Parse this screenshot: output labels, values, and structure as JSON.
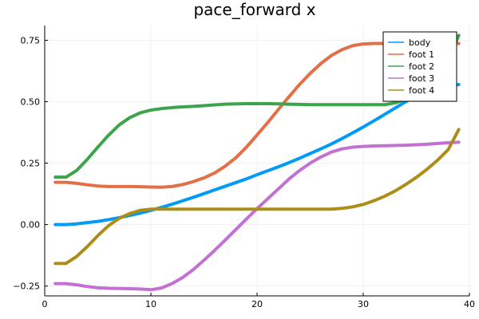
{
  "chart_data": {
    "type": "line",
    "title": "pace_forward x",
    "xlabel": "",
    "ylabel": "",
    "xlim": [
      0,
      40
    ],
    "ylim": [
      -0.29,
      0.81
    ],
    "xticks": [
      0,
      10,
      20,
      30,
      40
    ],
    "xtick_labels": [
      "0",
      "10",
      "20",
      "30",
      "40"
    ],
    "yticks": [
      -0.25,
      0,
      0.25,
      0.5,
      0.75
    ],
    "ytick_labels": [
      "−0.25",
      "0.00",
      "0.25",
      "0.50",
      "0.75"
    ],
    "grid": true,
    "legend_position": "top-right",
    "series": [
      {
        "name": "body",
        "color": "#009af9",
        "x": [
          1,
          2,
          3,
          4,
          5,
          6,
          7,
          8,
          9,
          10,
          11,
          12,
          13,
          14,
          15,
          16,
          17,
          18,
          19,
          20,
          21,
          22,
          23,
          24,
          25,
          26,
          27,
          28,
          29,
          30,
          31,
          32,
          33,
          34,
          35,
          36,
          37,
          38,
          39
        ],
        "values": [
          0.0,
          0.0,
          0.003,
          0.008,
          0.013,
          0.02,
          0.028,
          0.037,
          0.047,
          0.058,
          0.07,
          0.083,
          0.097,
          0.111,
          0.126,
          0.141,
          0.156,
          0.171,
          0.186,
          0.203,
          0.219,
          0.235,
          0.252,
          0.27,
          0.289,
          0.308,
          0.328,
          0.35,
          0.373,
          0.397,
          0.422,
          0.448,
          0.474,
          0.5,
          0.522,
          0.541,
          0.556,
          0.565,
          0.57
        ]
      },
      {
        "name": "foot 1",
        "color": "#e26f46",
        "x": [
          1,
          2,
          3,
          4,
          5,
          6,
          7,
          8,
          9,
          10,
          11,
          12,
          13,
          14,
          15,
          16,
          17,
          18,
          19,
          20,
          21,
          22,
          23,
          24,
          25,
          26,
          27,
          28,
          29,
          30,
          31,
          32,
          33,
          34,
          35,
          36,
          37,
          38,
          39
        ],
        "values": [
          0.172,
          0.172,
          0.168,
          0.162,
          0.157,
          0.155,
          0.155,
          0.155,
          0.154,
          0.153,
          0.152,
          0.155,
          0.163,
          0.175,
          0.19,
          0.21,
          0.238,
          0.272,
          0.315,
          0.365,
          0.415,
          0.468,
          0.52,
          0.57,
          0.615,
          0.655,
          0.688,
          0.712,
          0.728,
          0.735,
          0.737,
          0.737,
          0.737,
          0.737,
          0.737,
          0.737,
          0.737,
          0.737,
          0.737
        ]
      },
      {
        "name": "foot 2",
        "color": "#3da44d",
        "x": [
          1,
          2,
          3,
          4,
          5,
          6,
          7,
          8,
          9,
          10,
          11,
          12,
          13,
          14,
          15,
          16,
          17,
          18,
          19,
          20,
          21,
          22,
          23,
          24,
          25,
          26,
          27,
          28,
          29,
          30,
          31,
          32,
          33,
          34,
          35,
          36,
          37,
          38,
          39
        ],
        "values": [
          0.193,
          0.193,
          0.22,
          0.265,
          0.315,
          0.363,
          0.405,
          0.435,
          0.455,
          0.466,
          0.472,
          0.476,
          0.479,
          0.481,
          0.484,
          0.487,
          0.49,
          0.491,
          0.492,
          0.492,
          0.492,
          0.491,
          0.49,
          0.489,
          0.488,
          0.488,
          0.488,
          0.488,
          0.488,
          0.488,
          0.488,
          0.488,
          0.495,
          0.51,
          0.53,
          0.56,
          0.6,
          0.67,
          0.77
        ]
      },
      {
        "name": "foot 3",
        "color": "#c271d2",
        "x": [
          1,
          2,
          3,
          4,
          5,
          6,
          7,
          8,
          9,
          10,
          11,
          12,
          13,
          14,
          15,
          16,
          17,
          18,
          19,
          20,
          21,
          22,
          23,
          24,
          25,
          26,
          27,
          28,
          29,
          30,
          31,
          32,
          33,
          34,
          35,
          36,
          37,
          38,
          39
        ],
        "values": [
          -0.24,
          -0.24,
          -0.245,
          -0.252,
          -0.257,
          -0.259,
          -0.26,
          -0.261,
          -0.262,
          -0.265,
          -0.258,
          -0.24,
          -0.215,
          -0.183,
          -0.145,
          -0.105,
          -0.063,
          -0.02,
          0.023,
          0.065,
          0.105,
          0.145,
          0.185,
          0.22,
          0.25,
          0.275,
          0.295,
          0.308,
          0.315,
          0.318,
          0.32,
          0.321,
          0.322,
          0.323,
          0.325,
          0.327,
          0.33,
          0.333,
          0.335
        ]
      },
      {
        "name": "foot 4",
        "color": "#ac8d18",
        "x": [
          1,
          2,
          3,
          4,
          5,
          6,
          7,
          8,
          9,
          10,
          11,
          12,
          13,
          14,
          15,
          16,
          17,
          18,
          19,
          20,
          21,
          22,
          23,
          24,
          25,
          26,
          27,
          28,
          29,
          30,
          31,
          32,
          33,
          34,
          35,
          36,
          37,
          38,
          39
        ],
        "values": [
          -0.158,
          -0.158,
          -0.13,
          -0.09,
          -0.045,
          -0.005,
          0.025,
          0.045,
          0.058,
          0.063,
          0.063,
          0.063,
          0.063,
          0.063,
          0.063,
          0.063,
          0.063,
          0.063,
          0.063,
          0.063,
          0.063,
          0.063,
          0.063,
          0.063,
          0.063,
          0.063,
          0.063,
          0.066,
          0.072,
          0.082,
          0.097,
          0.115,
          0.137,
          0.163,
          0.192,
          0.225,
          0.262,
          0.305,
          0.387
        ]
      }
    ]
  }
}
